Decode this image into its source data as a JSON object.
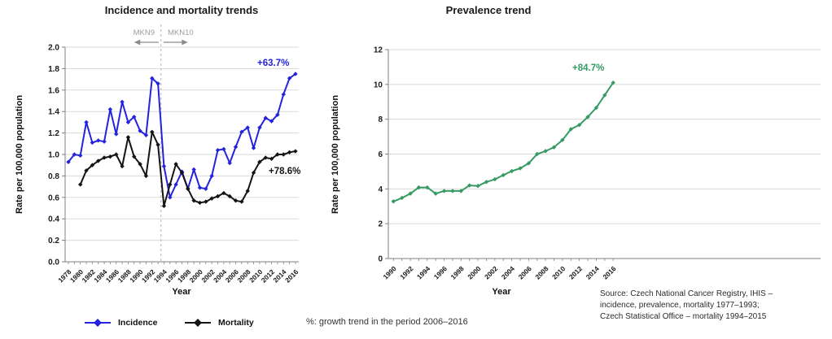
{
  "chart_data": [
    {
      "type": "line",
      "title": "Incidence and mortality trends",
      "xlabel": "Year",
      "ylabel": "Rate per 100,000 population",
      "ylim": [
        0,
        2.0
      ],
      "yticks": [
        0.0,
        0.2,
        0.4,
        0.6,
        0.8,
        1.0,
        1.2,
        1.4,
        1.6,
        1.8,
        2.0
      ],
      "y_decimals": 1,
      "xtick_labels": [
        1978,
        1980,
        1982,
        1984,
        1986,
        1988,
        1990,
        1992,
        1994,
        1996,
        1998,
        2000,
        2002,
        2004,
        2006,
        2008,
        2010,
        2012,
        2014,
        2016
      ],
      "grid": "horizontal",
      "legend_position": "bottom",
      "icd_note": {
        "left_label": "MKN9",
        "right_label": "MKN10",
        "divider_year": 1993.5
      },
      "series": [
        {
          "name": "Incidence",
          "color": "#2323dc",
          "x": [
            1978,
            1979,
            1980,
            1981,
            1982,
            1983,
            1984,
            1985,
            1986,
            1987,
            1988,
            1989,
            1990,
            1991,
            1992,
            1993,
            1994,
            1995,
            1996,
            1997,
            1998,
            1999,
            2000,
            2001,
            2002,
            2003,
            2004,
            2005,
            2006,
            2007,
            2008,
            2009,
            2010,
            2011,
            2012,
            2013,
            2014,
            2015,
            2016
          ],
          "values": [
            0.93,
            1.0,
            0.99,
            1.3,
            1.11,
            1.13,
            1.12,
            1.42,
            1.19,
            1.49,
            1.3,
            1.35,
            1.22,
            1.18,
            1.71,
            1.66,
            0.89,
            0.6,
            0.72,
            0.84,
            0.68,
            0.86,
            0.69,
            0.68,
            0.8,
            1.04,
            1.05,
            0.92,
            1.07,
            1.21,
            1.25,
            1.06,
            1.25,
            1.34,
            1.31,
            1.37,
            1.56,
            1.71,
            1.75
          ],
          "annotation": {
            "text": "+63.7%"
          }
        },
        {
          "name": "Mortality",
          "color": "#141414",
          "x": [
            1980,
            1981,
            1982,
            1983,
            1984,
            1985,
            1986,
            1987,
            1988,
            1989,
            1990,
            1991,
            1992,
            1993,
            1994,
            1995,
            1996,
            1997,
            1998,
            1999,
            2000,
            2001,
            2002,
            2003,
            2004,
            2005,
            2006,
            2007,
            2008,
            2009,
            2010,
            2011,
            2012,
            2013,
            2014,
            2015,
            2016
          ],
          "values": [
            0.72,
            0.85,
            0.9,
            0.94,
            0.97,
            0.98,
            1.0,
            0.89,
            1.16,
            0.98,
            0.91,
            0.8,
            1.21,
            1.09,
            0.52,
            0.72,
            0.91,
            0.83,
            0.68,
            0.57,
            0.55,
            0.56,
            0.59,
            0.61,
            0.64,
            0.61,
            0.57,
            0.56,
            0.66,
            0.83,
            0.93,
            0.97,
            0.96,
            1.0,
            1.0,
            1.02,
            1.03
          ],
          "annotation": {
            "text": "+78.6%"
          }
        }
      ]
    },
    {
      "type": "line",
      "title": "Prevalence trend",
      "xlabel": "Year",
      "ylabel": "Rate per 100,000 population",
      "ylim": [
        0,
        12
      ],
      "yticks": [
        0,
        2,
        4,
        6,
        8,
        10,
        12
      ],
      "y_decimals": 0,
      "xtick_labels": [
        1990,
        1992,
        1994,
        1996,
        1998,
        2000,
        2002,
        2004,
        2006,
        2008,
        2010,
        2012,
        2014,
        2016
      ],
      "grid": "horizontal",
      "series": [
        {
          "name": "Prevalence",
          "color": "#359b63",
          "x": [
            1990,
            1991,
            1992,
            1993,
            1994,
            1995,
            1996,
            1997,
            1998,
            1999,
            2000,
            2001,
            2002,
            2003,
            2004,
            2005,
            2006,
            2007,
            2008,
            2009,
            2010,
            2011,
            2012,
            2013,
            2014,
            2015,
            2016
          ],
          "values": [
            3.28,
            3.48,
            3.73,
            4.08,
            4.08,
            3.73,
            3.88,
            3.88,
            3.88,
            4.2,
            4.17,
            4.4,
            4.55,
            4.79,
            5.02,
            5.18,
            5.47,
            6.0,
            6.17,
            6.39,
            6.81,
            7.43,
            7.67,
            8.13,
            8.66,
            9.38,
            10.1
          ],
          "annotation": {
            "text": "+84.7%"
          }
        }
      ]
    }
  ],
  "legend": {
    "items": [
      {
        "label": "Incidence",
        "color": "#2323dc"
      },
      {
        "label": "Mortality",
        "color": "#141414"
      }
    ]
  },
  "footer": {
    "percent_note": "%: growth trend in the period 2006–2016",
    "source_lines": [
      "Source: Czech National Cancer Registry, IHIS –",
      "incidence, prevalence, mortality 1977–1993;",
      "Czech Statistical Office – mortality 1994–2015"
    ]
  }
}
